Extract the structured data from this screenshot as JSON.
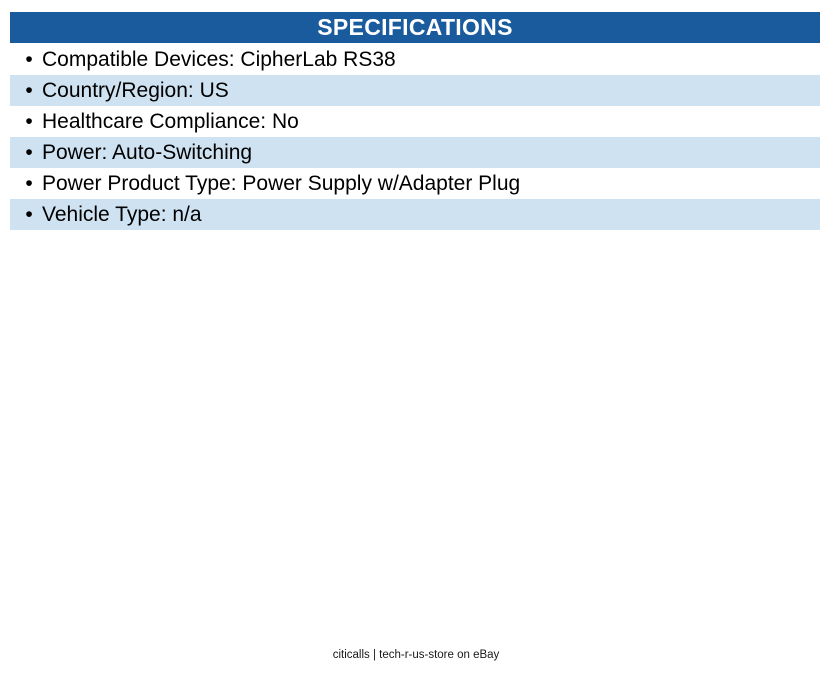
{
  "header": {
    "title": "SPECIFICATIONS"
  },
  "specs": {
    "bullet": "•",
    "items": [
      {
        "label": "Compatible Devices",
        "value": "CipherLab RS38",
        "text": "Compatible Devices: CipherLab RS38"
      },
      {
        "label": "Country/Region",
        "value": "US",
        "text": "Country/Region: US"
      },
      {
        "label": "Healthcare Compliance",
        "value": "No",
        "text": "Healthcare Compliance: No"
      },
      {
        "label": "Power",
        "value": "Auto-Switching",
        "text": "Power: Auto-Switching"
      },
      {
        "label": "Power Product Type",
        "value": "Power Supply w/Adapter Plug",
        "text": "Power Product Type: Power Supply w/Adapter Plug"
      },
      {
        "label": "Vehicle Type",
        "value": "n/a",
        "text": "Vehicle Type: n/a"
      }
    ]
  },
  "footer": {
    "text": "citicalls | tech-r-us-store on eBay"
  },
  "colors": {
    "header_bg": "#1A5B9E",
    "header_text": "#FFFFFF",
    "row_alt_bg": "#CFE2F1",
    "body_text": "#000000"
  }
}
